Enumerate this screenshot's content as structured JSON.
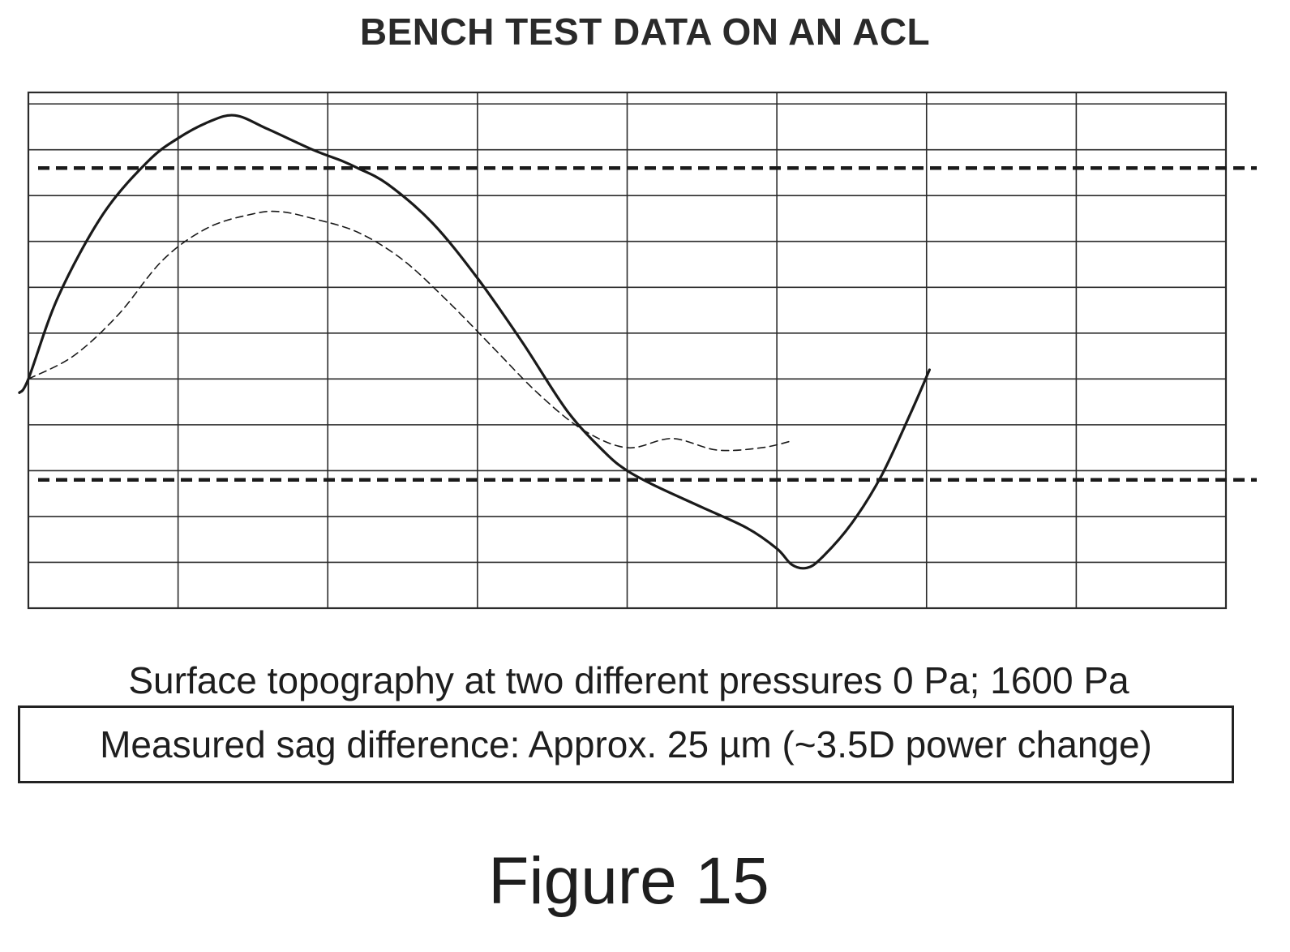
{
  "chart_data": {
    "type": "line",
    "title": "BENCH TEST DATA ON AN ACL",
    "xlabel": "",
    "ylabel": "",
    "grid": true,
    "xlim": [
      0,
      8
    ],
    "ylim": [
      0,
      11.25
    ],
    "series": [
      {
        "style": "solid",
        "x": [
          -0.06,
          0.0,
          0.2,
          0.5,
          0.8,
          1.0,
          1.2,
          1.38,
          1.6,
          1.9,
          2.1,
          2.2,
          2.4,
          2.7,
          3.0,
          3.3,
          3.6,
          3.85,
          4.0,
          4.2,
          4.5,
          4.8,
          5.0,
          5.1,
          5.2,
          5.3,
          5.5,
          5.7,
          5.9,
          6.02
        ],
        "y": [
          4.7,
          5.0,
          6.8,
          8.6,
          9.75,
          10.25,
          10.6,
          10.75,
          10.45,
          10.0,
          9.75,
          9.6,
          9.25,
          8.4,
          7.2,
          5.8,
          4.3,
          3.4,
          3.0,
          2.65,
          2.2,
          1.75,
          1.3,
          0.95,
          0.88,
          1.1,
          1.85,
          2.9,
          4.3,
          5.2
        ]
      },
      {
        "style": "dashed",
        "x": [
          0.0,
          0.3,
          0.6,
          0.9,
          1.2,
          1.5,
          1.68,
          1.9,
          2.2,
          2.5,
          2.8,
          3.1,
          3.4,
          3.7,
          4.0,
          4.3,
          4.6,
          4.9,
          5.1
        ],
        "y": [
          5.0,
          5.5,
          6.4,
          7.6,
          8.3,
          8.6,
          8.65,
          8.5,
          8.2,
          7.6,
          6.7,
          5.7,
          4.7,
          3.9,
          3.5,
          3.7,
          3.45,
          3.5,
          3.65
        ]
      }
    ],
    "reference_lines": [
      {
        "style": "dashed",
        "y": 9.6
      },
      {
        "style": "dashed",
        "y": 2.8
      }
    ],
    "caption": "Surface topography at two different pressures 0 Pa; 1600 Pa",
    "note": "Measured sag difference: Approx. 25 µm (~3.5D power change)"
  },
  "figure_label": "Figure 15",
  "colors": {
    "line": "#1a1a1a",
    "grid": "#2b2b2b",
    "background": "#ffffff"
  }
}
